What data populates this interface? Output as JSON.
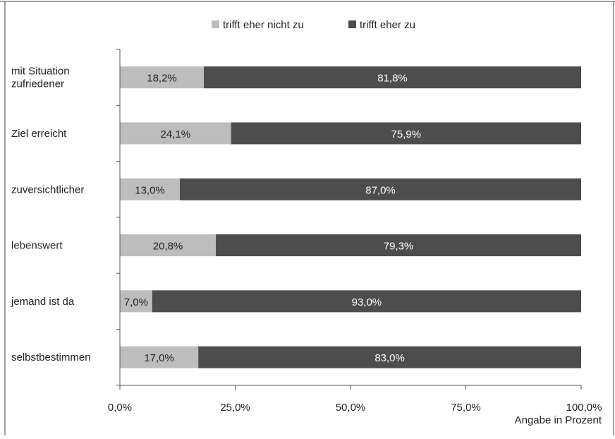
{
  "chart_data": {
    "type": "bar",
    "stacked": true,
    "orientation": "horizontal",
    "categories": [
      "mit Situation zufriedener",
      "Ziel erreicht",
      "zuversichtlicher",
      "lebenswert",
      "jemand ist da",
      "selbstbestimmen"
    ],
    "category_lines": [
      [
        "mit Situation",
        "zufriedener"
      ],
      [
        "Ziel erreicht"
      ],
      [
        "zuversichtlicher"
      ],
      [
        "lebenswert"
      ],
      [
        "jemand ist da"
      ],
      [
        "selbstbestimmen"
      ]
    ],
    "series": [
      {
        "name": "trifft eher nicht zu",
        "values": [
          18.2,
          24.1,
          13.0,
          20.8,
          7.0,
          17.0
        ],
        "labels": [
          "18,2%",
          "24,1%",
          "13,0%",
          "20,8%",
          "7,0%",
          "17,0%"
        ],
        "color": "#bdbdbd"
      },
      {
        "name": "trifft eher zu",
        "values": [
          81.8,
          75.9,
          87.0,
          79.3,
          93.0,
          83.0
        ],
        "labels": [
          "81,8%",
          "75,9%",
          "87,0%",
          "79,3%",
          "93,0%",
          "83,0%"
        ],
        "color": "#4d4d4d"
      }
    ],
    "xlim": [
      0,
      100
    ],
    "xticks": [
      0,
      25,
      50,
      75,
      100
    ],
    "xtick_labels": [
      "0,0%",
      "25,0%",
      "50,0%",
      "75,0%",
      "100,0%"
    ],
    "xlabel": "Angabe in Prozent",
    "legend_position": "top",
    "grid": false
  }
}
